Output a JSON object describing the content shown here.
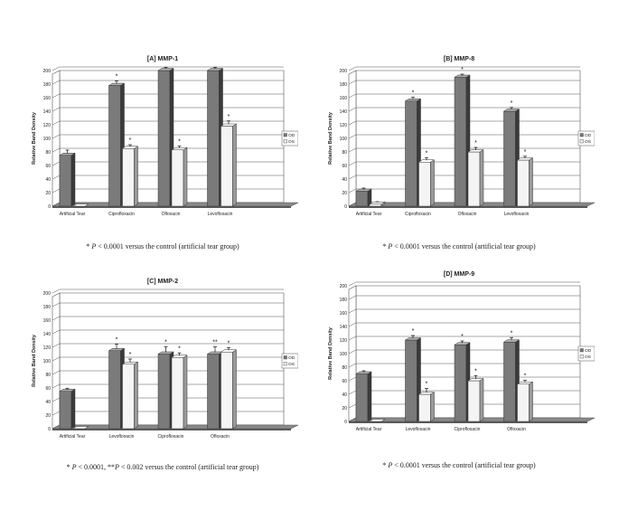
{
  "figure": {
    "legend": {
      "od": "OD",
      "os": "OS"
    },
    "ylabel": "Relative Band Density",
    "colors": {
      "od": "#7a7a7a",
      "od_dark": "#3a3a3a",
      "od_light": "#b0b0b0",
      "os": "#f4f4f4",
      "os_dark": "#9a9a9a",
      "floor": "#8a8a8a"
    }
  },
  "chart_data": [
    {
      "type": "bar",
      "title": "[A] MMP-1",
      "caption": {
        "symbol": "* ",
        "p": "P",
        "text": " < 0.0001 versus the control (artificial tear group)"
      },
      "ylabel": "Relative Band Density",
      "ylim": [
        0,
        200
      ],
      "yticks": [
        0,
        20,
        40,
        60,
        80,
        100,
        120,
        140,
        160,
        180,
        200
      ],
      "categories": [
        "Artificial Tear",
        "Ciprofloxacin",
        "Ofloxacin",
        "Levofloxacin"
      ],
      "series": [
        {
          "name": "OD",
          "values": [
            75,
            178,
            200,
            200
          ],
          "errors": [
            5,
            4,
            2,
            2
          ],
          "labels": [
            "",
            "*",
            "*",
            "*"
          ]
        },
        {
          "name": "OS",
          "values": [
            0,
            85,
            83,
            118
          ],
          "errors": [
            0,
            3,
            3,
            5
          ],
          "labels": [
            "",
            "*",
            "*",
            "*"
          ]
        }
      ],
      "legend_position": "right",
      "grid": true
    },
    {
      "type": "bar",
      "title": "[B] MMP-8",
      "caption": {
        "symbol": "* ",
        "p": "P",
        "text": " < 0.0001 versus the control (artificial tear group)"
      },
      "ylabel": "Relative Band Density",
      "ylim": [
        0,
        200
      ],
      "yticks": [
        0,
        20,
        40,
        60,
        80,
        100,
        120,
        140,
        160,
        180,
        200
      ],
      "categories": [
        "Artificial Tear",
        "Ciprofloxacin",
        "Ofloxacin",
        "Levofloxacin"
      ],
      "series": [
        {
          "name": "OD",
          "values": [
            22,
            155,
            190,
            140
          ],
          "errors": [
            2,
            3,
            2,
            3
          ],
          "labels": [
            "",
            "*",
            "*",
            "*"
          ]
        },
        {
          "name": "OS",
          "values": [
            3,
            65,
            80,
            68
          ],
          "errors": [
            1,
            4,
            4,
            3
          ],
          "labels": [
            "",
            "*",
            "*",
            "*"
          ]
        }
      ],
      "legend_position": "right",
      "grid": true
    },
    {
      "type": "bar",
      "title": "[C] MMP-2",
      "caption": {
        "symbol": "* ",
        "p": "P",
        "text": " < 0.0001, **",
        "p2": "P",
        "text2": " < 0.002 versus the control (artificial tear group)"
      },
      "ylabel": "Relative Band Density",
      "ylim": [
        0,
        200
      ],
      "yticks": [
        0,
        20,
        40,
        60,
        80,
        100,
        120,
        140,
        160,
        180,
        200
      ],
      "categories": [
        "Artificial Tear",
        "Levofloxacin",
        "Ciprofloxacin",
        "Ofloxacin"
      ],
      "series": [
        {
          "name": "OD",
          "values": [
            55,
            115,
            110,
            110
          ],
          "errors": [
            2,
            7,
            8,
            8
          ],
          "labels": [
            "",
            "*",
            "*",
            "**"
          ]
        },
        {
          "name": "OS",
          "values": [
            0,
            95,
            105,
            113
          ],
          "errors": [
            0,
            5,
            4,
            4
          ],
          "labels": [
            "",
            "*",
            "*",
            "*"
          ]
        }
      ],
      "legend_position": "right",
      "grid": true
    },
    {
      "type": "bar",
      "title": "[D] MMP-9",
      "caption": {
        "symbol": "* ",
        "p": "P",
        "text": " < 0.0001 versus the control (artificial tear group)"
      },
      "ylabel": "Relative Band Density",
      "ylim": [
        0,
        200
      ],
      "yticks": [
        0,
        20,
        40,
        60,
        80,
        100,
        120,
        140,
        160,
        180,
        200
      ],
      "categories": [
        "Artificial Tear",
        "Levofloxacin",
        "Ciprofloxacin",
        "Ofloxacin"
      ],
      "series": [
        {
          "name": "OD",
          "values": [
            70,
            120,
            113,
            117
          ],
          "errors": [
            2,
            4,
            3,
            4
          ],
          "labels": [
            "",
            "*",
            "*",
            "*"
          ]
        },
        {
          "name": "OS",
          "values": [
            0,
            40,
            60,
            55
          ],
          "errors": [
            0,
            6,
            5,
            3
          ],
          "labels": [
            "",
            "*",
            "*",
            "*"
          ]
        }
      ],
      "legend_position": "right",
      "grid": true
    }
  ]
}
